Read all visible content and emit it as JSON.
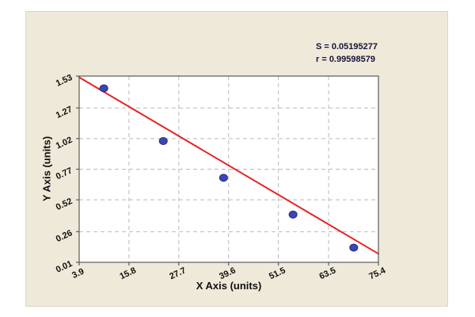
{
  "figure": {
    "panel_background": "#efe9d9"
  },
  "chart_data": {
    "type": "scatter",
    "title": "",
    "xlabel": "X Axis (units)",
    "ylabel": "Y Axis (units)",
    "xlim": [
      3.9,
      75.4
    ],
    "ylim": [
      0.01,
      1.53
    ],
    "x_ticks": [
      "3.9",
      "15.8",
      "27.7",
      "39.6",
      "51.5",
      "63.5",
      "75.4"
    ],
    "y_ticks": [
      "0.01",
      "0.26",
      "0.52",
      "0.77",
      "1.02",
      "1.27",
      "1.53"
    ],
    "grid": true,
    "legend_position": "none",
    "annotations": [
      "S = 0.05195277",
      "r = 0.99598579"
    ],
    "points": [
      {
        "x": 9.8,
        "y": 1.43
      },
      {
        "x": 24.0,
        "y": 1.0
      },
      {
        "x": 38.4,
        "y": 0.7
      },
      {
        "x": 55.0,
        "y": 0.4
      },
      {
        "x": 69.5,
        "y": 0.13
      }
    ],
    "fit_line": {
      "x1": 3.9,
      "y1": 1.52,
      "x2": 75.4,
      "y2": 0.08
    },
    "colors": {
      "point": "#3a46b4",
      "point_edge": "#232d7d",
      "line": "#e82222",
      "grid": "#b9b9b9",
      "plot_border": "#5a5a5a",
      "text": "#101010",
      "stats_text": "#14143c",
      "plot_bg": "#ffffff"
    }
  }
}
